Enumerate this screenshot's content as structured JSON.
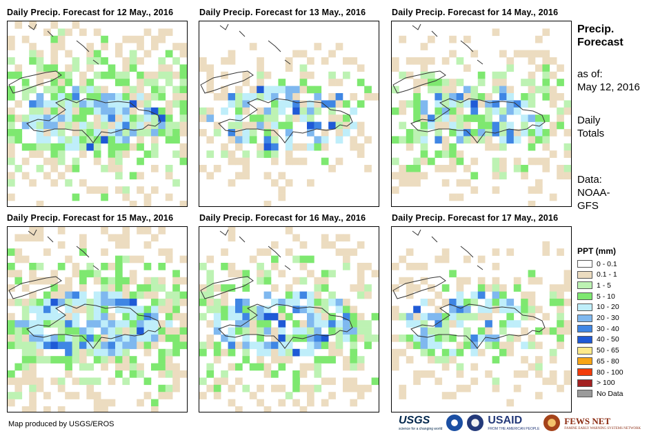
{
  "panels": [
    {
      "title": "Daily Precip. Forecast for 12 May., 2016",
      "seed": 12,
      "wet": 0.72,
      "heavy": 0.55
    },
    {
      "title": "Daily Precip. Forecast for 13 May., 2016",
      "seed": 13,
      "wet": 0.45,
      "heavy": 0.35
    },
    {
      "title": "Daily Precip. Forecast for 14 May., 2016",
      "seed": 14,
      "wet": 0.55,
      "heavy": 0.4
    },
    {
      "title": "Daily Precip. Forecast for 15 May., 2016",
      "seed": 15,
      "wet": 0.7,
      "heavy": 0.6
    },
    {
      "title": "Daily Precip. Forecast for 16 May., 2016",
      "seed": 16,
      "wet": 0.62,
      "heavy": 0.45
    },
    {
      "title": "Daily Precip. Forecast for 17 May., 2016",
      "seed": 17,
      "wet": 0.48,
      "heavy": 0.25
    }
  ],
  "side": {
    "title_line1": "Precip.",
    "title_line2": "Forecast",
    "asof_label": "as of:",
    "asof_date": "May 12, 2016",
    "daily_line1": "Daily",
    "daily_line2": "Totals",
    "data_line1": "Data:",
    "data_line2": "NOAA-",
    "data_line3": "GFS"
  },
  "legend": {
    "title": "PPT (mm)",
    "items": [
      {
        "label": "0 - 0.1",
        "color": "#ffffff"
      },
      {
        "label": "0.1 - 1",
        "color": "#ecdcc0"
      },
      {
        "label": "1 - 5",
        "color": "#bdf2b3"
      },
      {
        "label": "5 - 10",
        "color": "#7ee870"
      },
      {
        "label": "10 - 20",
        "color": "#bfeefa"
      },
      {
        "label": "20 - 30",
        "color": "#7fb8ef"
      },
      {
        "label": "30 - 40",
        "color": "#3f86e4"
      },
      {
        "label": "40 - 50",
        "color": "#1f5ad6"
      },
      {
        "label": "50 - 65",
        "color": "#fde98a"
      },
      {
        "label": "65 - 80",
        "color": "#f8a516"
      },
      {
        "label": "80 - 100",
        "color": "#f23c0a"
      },
      {
        "label": "> 100",
        "color": "#a32121"
      },
      {
        "label": "No Data",
        "color": "#9b9b9b"
      }
    ]
  },
  "credit": "Map produced by USGS/EROS",
  "logos": {
    "usgs": "USGS",
    "usgs_tag": "science for a changing world",
    "usaid": "USAID",
    "usaid_tag": "FROM THE AMERICAN PEOPLE",
    "fewsnet": "FEWS NET",
    "fewsnet_tag": "FAMINE EARLY WARNING SYSTEMS NETWORK"
  }
}
